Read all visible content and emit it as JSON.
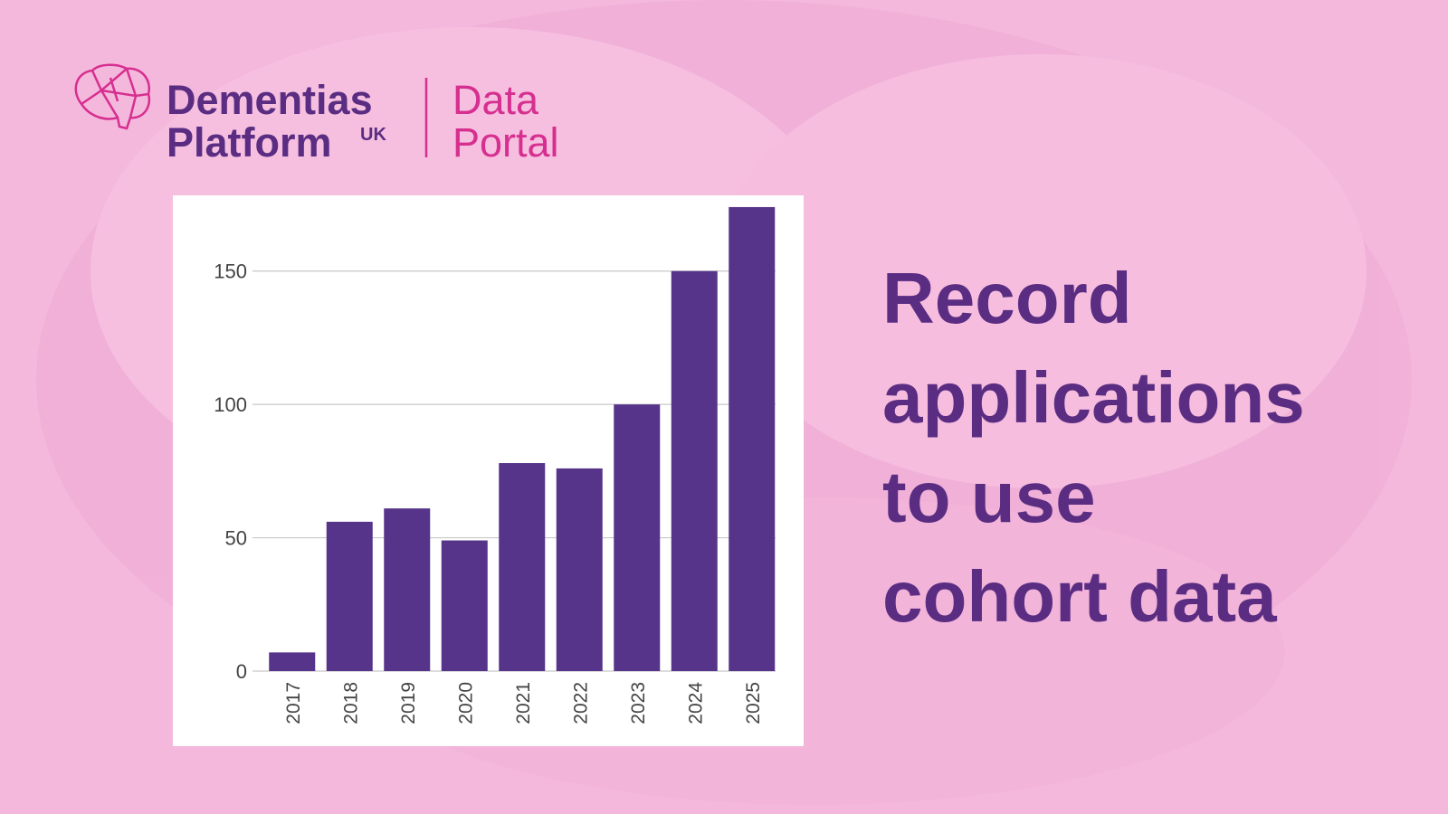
{
  "logo": {
    "name_line1": "Dementias",
    "name_line2": "Platform",
    "name_suffix": "UK",
    "product_line1": "Data",
    "product_line2": "Portal"
  },
  "headline": [
    "Record",
    "applications",
    "to use",
    "cohort data"
  ],
  "chart_data": {
    "type": "bar",
    "categories": [
      "2017",
      "2018",
      "2019",
      "2020",
      "2021",
      "2022",
      "2023",
      "2024",
      "2025"
    ],
    "values": [
      7,
      56,
      61,
      49,
      78,
      76,
      100,
      150,
      174
    ],
    "color": "#56348a",
    "ylim": [
      0,
      175
    ],
    "yticks": [
      0,
      50,
      100,
      150
    ],
    "grid": true
  }
}
